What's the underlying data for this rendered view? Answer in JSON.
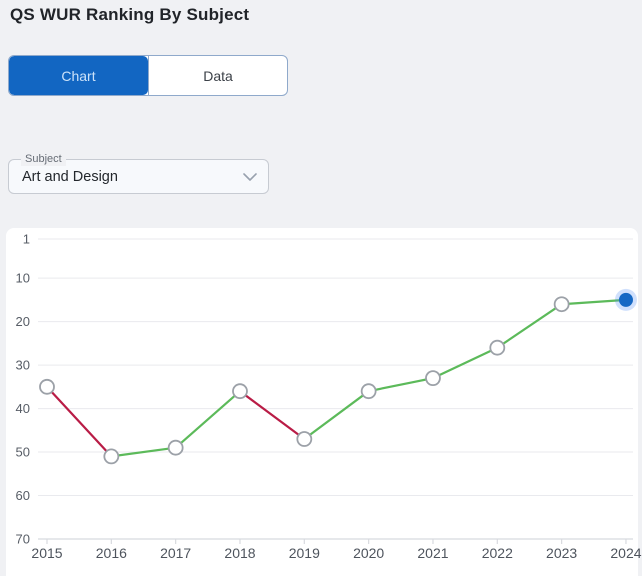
{
  "page": {
    "title": "QS WUR Ranking By Subject"
  },
  "tabs": [
    {
      "label": "Chart",
      "active": true
    },
    {
      "label": "Data",
      "active": false
    }
  ],
  "subject_select": {
    "label": "Subject",
    "value": "Art and Design"
  },
  "colors": {
    "active_tab_blue": "#1266C2",
    "active_tab_text": "#CBE2F9",
    "improve_green": "#5CBA5A",
    "decline_red": "#B91C46",
    "current_point_blue": "#1668C4",
    "current_point_halo": "rgba(66,133,244,0.25)",
    "point_stroke": "#9CA1A8",
    "gridline": "#E9EAEE",
    "axis_line": "#D8DADF",
    "axis_text": "#575D66"
  },
  "chart_data": {
    "type": "line",
    "title": "QS WUR Ranking By Subject",
    "subject": "Art and Design",
    "x": [
      2015,
      2016,
      2017,
      2018,
      2019,
      2020,
      2021,
      2022,
      2023,
      2024
    ],
    "values": [
      35,
      51,
      49,
      36,
      47,
      36,
      33,
      26,
      16,
      15
    ],
    "yticks": [
      1,
      10,
      20,
      30,
      40,
      50,
      60,
      70
    ],
    "ylim": [
      1,
      70
    ],
    "y_axis_inverted": true,
    "grid": true,
    "segment_color_rule": "green segment when ranking improves (number decreases), red segment when ranking declines (number increases)",
    "highlighted_point": {
      "x": 2024,
      "value": 15
    }
  }
}
